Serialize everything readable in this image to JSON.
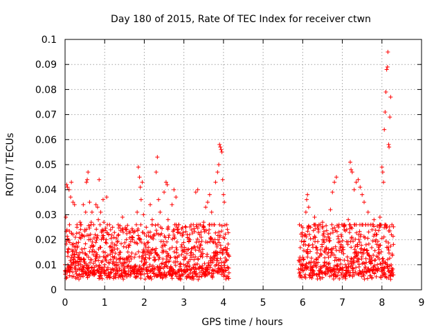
{
  "chart_data": {
    "type": "scatter",
    "title": "Day 180 of 2015, Rate Of TEC Index for receiver ctwn",
    "xlabel": "GPS time / hours",
    "ylabel": "ROTI / TECUs",
    "xlim": [
      0,
      9
    ],
    "ylim": [
      0,
      0.1
    ],
    "x_ticks": [
      "0",
      "1",
      "2",
      "3",
      "4",
      "5",
      "6",
      "7",
      "8",
      "9"
    ],
    "y_ticks": [
      "0",
      "0.01",
      "0.02",
      "0.03",
      "0.04",
      "0.05",
      "0.06",
      "0.07",
      "0.08",
      "0.09",
      "0.1"
    ],
    "grid": true,
    "marker": "+",
    "color": "#ff0000",
    "series": [
      {
        "name": "ROTI",
        "points": [
          [
            0.0,
            0.01
          ],
          [
            0.02,
            0.029
          ],
          [
            0.04,
            0.042
          ],
          [
            0.06,
            0.041
          ],
          [
            0.08,
            0.015
          ],
          [
            0.1,
            0.04
          ],
          [
            0.12,
            0.009
          ],
          [
            0.14,
            0.037
          ],
          [
            0.16,
            0.043
          ],
          [
            0.18,
            0.018
          ],
          [
            0.2,
            0.035
          ],
          [
            0.22,
            0.012
          ],
          [
            0.24,
            0.034
          ],
          [
            0.26,
            0.021
          ],
          [
            0.28,
            0.011
          ],
          [
            0.3,
            0.025
          ],
          [
            0.32,
            0.008
          ],
          [
            0.34,
            0.019
          ],
          [
            0.36,
            0.013
          ],
          [
            0.38,
            0.027
          ],
          [
            0.4,
            0.01
          ],
          [
            0.42,
            0.022
          ],
          [
            0.44,
            0.015
          ],
          [
            0.46,
            0.034
          ],
          [
            0.48,
            0.009
          ],
          [
            0.5,
            0.024
          ],
          [
            0.52,
            0.031
          ],
          [
            0.54,
            0.043
          ],
          [
            0.56,
            0.044
          ],
          [
            0.58,
            0.047
          ],
          [
            0.6,
            0.02
          ],
          [
            0.62,
            0.035
          ],
          [
            0.64,
            0.012
          ],
          [
            0.66,
            0.027
          ],
          [
            0.68,
            0.031
          ],
          [
            0.7,
            0.016
          ],
          [
            0.72,
            0.026
          ],
          [
            0.74,
            0.009
          ],
          [
            0.76,
            0.022
          ],
          [
            0.78,
            0.034
          ],
          [
            0.8,
            0.013
          ],
          [
            0.82,
            0.033
          ],
          [
            0.84,
            0.028
          ],
          [
            0.86,
            0.044
          ],
          [
            0.88,
            0.017
          ],
          [
            0.9,
            0.031
          ],
          [
            0.92,
            0.011
          ],
          [
            0.94,
            0.024
          ],
          [
            0.96,
            0.036
          ],
          [
            0.98,
            0.027
          ],
          [
            1.0,
            0.01
          ],
          [
            1.05,
            0.037
          ],
          [
            1.1,
            0.022
          ],
          [
            1.15,
            0.012
          ],
          [
            1.2,
            0.025
          ],
          [
            1.25,
            0.018
          ],
          [
            1.3,
            0.008
          ],
          [
            1.35,
            0.022
          ],
          [
            1.4,
            0.015
          ],
          [
            1.45,
            0.029
          ],
          [
            1.5,
            0.011
          ],
          [
            1.55,
            0.024
          ],
          [
            1.6,
            0.017
          ],
          [
            1.65,
            0.009
          ],
          [
            1.7,
            0.02
          ],
          [
            1.75,
            0.013
          ],
          [
            1.8,
            0.026
          ],
          [
            1.82,
            0.031
          ],
          [
            1.85,
            0.049
          ],
          [
            1.88,
            0.045
          ],
          [
            1.9,
            0.041
          ],
          [
            1.92,
            0.036
          ],
          [
            1.95,
            0.043
          ],
          [
            1.98,
            0.03
          ],
          [
            2.0,
            0.012
          ],
          [
            2.05,
            0.025
          ],
          [
            2.1,
            0.019
          ],
          [
            2.15,
            0.034
          ],
          [
            2.2,
            0.028
          ],
          [
            2.25,
            0.022
          ],
          [
            2.3,
            0.047
          ],
          [
            2.33,
            0.053
          ],
          [
            2.36,
            0.036
          ],
          [
            2.4,
            0.031
          ],
          [
            2.45,
            0.015
          ],
          [
            2.5,
            0.039
          ],
          [
            2.55,
            0.043
          ],
          [
            2.58,
            0.042
          ],
          [
            2.6,
            0.028
          ],
          [
            2.65,
            0.013
          ],
          [
            2.7,
            0.034
          ],
          [
            2.75,
            0.04
          ],
          [
            2.8,
            0.037
          ],
          [
            2.85,
            0.024
          ],
          [
            2.9,
            0.01
          ],
          [
            2.95,
            0.018
          ],
          [
            3.0,
            0.012
          ],
          [
            3.05,
            0.025
          ],
          [
            3.1,
            0.016
          ],
          [
            3.15,
            0.02
          ],
          [
            3.2,
            0.013
          ],
          [
            3.25,
            0.017
          ],
          [
            3.3,
            0.039
          ],
          [
            3.35,
            0.04
          ],
          [
            3.4,
            0.022
          ],
          [
            3.45,
            0.014
          ],
          [
            3.5,
            0.027
          ],
          [
            3.55,
            0.033
          ],
          [
            3.6,
            0.035
          ],
          [
            3.65,
            0.038
          ],
          [
            3.7,
            0.031
          ],
          [
            3.75,
            0.019
          ],
          [
            3.8,
            0.043
          ],
          [
            3.85,
            0.047
          ],
          [
            3.88,
            0.05
          ],
          [
            3.9,
            0.058
          ],
          [
            3.92,
            0.057
          ],
          [
            3.94,
            0.056
          ],
          [
            3.96,
            0.055
          ],
          [
            3.98,
            0.044
          ],
          [
            4.0,
            0.038
          ],
          [
            4.02,
            0.035
          ],
          [
            4.05,
            0.017
          ],
          [
            4.08,
            0.012
          ],
          [
            4.1,
            0.009
          ],
          [
            5.95,
            0.01
          ],
          [
            6.0,
            0.013
          ],
          [
            6.05,
            0.022
          ],
          [
            6.08,
            0.031
          ],
          [
            6.1,
            0.036
          ],
          [
            6.12,
            0.038
          ],
          [
            6.15,
            0.033
          ],
          [
            6.2,
            0.025
          ],
          [
            6.25,
            0.018
          ],
          [
            6.3,
            0.029
          ],
          [
            6.35,
            0.012
          ],
          [
            6.4,
            0.024
          ],
          [
            6.45,
            0.016
          ],
          [
            6.5,
            0.027
          ],
          [
            6.55,
            0.011
          ],
          [
            6.6,
            0.02
          ],
          [
            6.65,
            0.015
          ],
          [
            6.7,
            0.032
          ],
          [
            6.75,
            0.039
          ],
          [
            6.8,
            0.043
          ],
          [
            6.85,
            0.045
          ],
          [
            6.9,
            0.019
          ],
          [
            6.95,
            0.012
          ],
          [
            7.0,
            0.016
          ],
          [
            7.05,
            0.024
          ],
          [
            7.1,
            0.009
          ],
          [
            7.15,
            0.028
          ],
          [
            7.2,
            0.051
          ],
          [
            7.22,
            0.048
          ],
          [
            7.25,
            0.047
          ],
          [
            7.3,
            0.04
          ],
          [
            7.35,
            0.043
          ],
          [
            7.4,
            0.044
          ],
          [
            7.45,
            0.041
          ],
          [
            7.5,
            0.038
          ],
          [
            7.55,
            0.035
          ],
          [
            7.6,
            0.018
          ],
          [
            7.65,
            0.031
          ],
          [
            7.7,
            0.011
          ],
          [
            7.75,
            0.024
          ],
          [
            7.8,
            0.028
          ],
          [
            7.85,
            0.02
          ],
          [
            7.9,
            0.013
          ],
          [
            7.95,
            0.029
          ],
          [
            8.0,
            0.049
          ],
          [
            8.02,
            0.047
          ],
          [
            8.04,
            0.043
          ],
          [
            8.06,
            0.064
          ],
          [
            8.08,
            0.071
          ],
          [
            8.1,
            0.079
          ],
          [
            8.12,
            0.088
          ],
          [
            8.14,
            0.089
          ],
          [
            8.15,
            0.095
          ],
          [
            8.17,
            0.058
          ],
          [
            8.18,
            0.057
          ],
          [
            8.2,
            0.069
          ],
          [
            8.22,
            0.077
          ],
          [
            8.24,
            0.022
          ]
        ]
      }
    ],
    "segments": [
      {
        "name": "segment-1",
        "x_range": [
          0.0,
          4.15
        ],
        "y_range": [
          0.004,
          0.024
        ]
      },
      {
        "name": "segment-2",
        "x_range": [
          5.9,
          8.3
        ],
        "y_range": [
          0.004,
          0.024
        ]
      }
    ]
  }
}
